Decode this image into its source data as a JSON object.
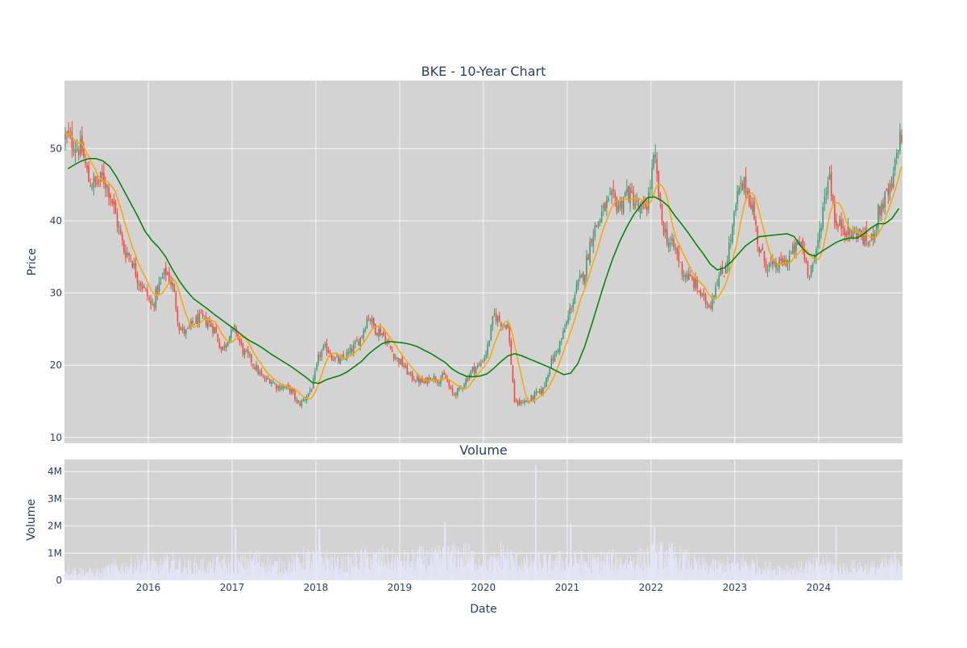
{
  "chart_data": [
    {
      "type": "candlestick",
      "title": "BKE - 10-Year Chart",
      "xlabel": "",
      "ylabel": "Price",
      "ylim": [
        9.2,
        59.4
      ],
      "yticks": [
        10,
        20,
        30,
        40,
        50
      ],
      "xlim": [
        "2015-01-01",
        "2024-12-31"
      ],
      "xticks": [
        "2016",
        "2017",
        "2018",
        "2019",
        "2020",
        "2021",
        "2022",
        "2023",
        "2024"
      ],
      "grid": true,
      "plot_background": "#d3d3d3",
      "up_color": "#3d9970",
      "down_color": "#ff4136",
      "series": [
        {
          "role": "price",
          "x": [
            "2015-01",
            "2015-02",
            "2015-03",
            "2015-04",
            "2015-05",
            "2015-06",
            "2015-07",
            "2015-08",
            "2015-09",
            "2015-10",
            "2015-11",
            "2015-12",
            "2016-01",
            "2016-02",
            "2016-03",
            "2016-04",
            "2016-05",
            "2016-06",
            "2016-07",
            "2016-08",
            "2016-09",
            "2016-10",
            "2016-11",
            "2016-12",
            "2017-01",
            "2017-02",
            "2017-03",
            "2017-04",
            "2017-05",
            "2017-06",
            "2017-07",
            "2017-08",
            "2017-09",
            "2017-10",
            "2017-11",
            "2017-12",
            "2018-01",
            "2018-02",
            "2018-03",
            "2018-04",
            "2018-05",
            "2018-06",
            "2018-07",
            "2018-08",
            "2018-09",
            "2018-10",
            "2018-11",
            "2018-12",
            "2019-01",
            "2019-02",
            "2019-03",
            "2019-04",
            "2019-05",
            "2019-06",
            "2019-07",
            "2019-08",
            "2019-09",
            "2019-10",
            "2019-11",
            "2019-12",
            "2020-01",
            "2020-02",
            "2020-03",
            "2020-04",
            "2020-05",
            "2020-06",
            "2020-07",
            "2020-08",
            "2020-09",
            "2020-10",
            "2020-11",
            "2020-12",
            "2021-01",
            "2021-02",
            "2021-03",
            "2021-04",
            "2021-05",
            "2021-06",
            "2021-07",
            "2021-08",
            "2021-09",
            "2021-10",
            "2021-11",
            "2021-12",
            "2022-01",
            "2022-02",
            "2022-03",
            "2022-04",
            "2022-05",
            "2022-06",
            "2022-07",
            "2022-08",
            "2022-09",
            "2022-10",
            "2022-11",
            "2022-12",
            "2023-01",
            "2023-02",
            "2023-03",
            "2023-04",
            "2023-05",
            "2023-06",
            "2023-07",
            "2023-08",
            "2023-09",
            "2023-10",
            "2023-11",
            "2023-12",
            "2024-01",
            "2024-02",
            "2024-03",
            "2024-04",
            "2024-05",
            "2024-06",
            "2024-07",
            "2024-08",
            "2024-09",
            "2024-10",
            "2024-11",
            "2024-12"
          ],
          "close": [
            51.5,
            50.5,
            49.8,
            45.5,
            45.0,
            46.0,
            44.0,
            40.0,
            36.0,
            35.0,
            32.0,
            30.5,
            28.0,
            31.0,
            33.0,
            31.0,
            25.0,
            24.5,
            26.0,
            26.5,
            26.0,
            25.0,
            22.0,
            24.0,
            25.0,
            22.0,
            21.0,
            19.5,
            18.0,
            18.0,
            17.0,
            17.0,
            16.5,
            14.5,
            15.5,
            17.0,
            21.5,
            22.5,
            21.0,
            20.5,
            21.5,
            22.5,
            24.0,
            27.0,
            25.0,
            24.5,
            22.5,
            21.0,
            20.0,
            18.5,
            18.0,
            17.5,
            18.5,
            18.0,
            18.5,
            16.0,
            16.5,
            18.0,
            19.5,
            20.0,
            22.0,
            27.0,
            26.0,
            25.5,
            14.5,
            15.0,
            15.0,
            16.0,
            16.5,
            20.0,
            22.0,
            24.5,
            28.0,
            31.0,
            33.0,
            38.0,
            40.0,
            42.0,
            43.0,
            42.0,
            44.0,
            43.0,
            41.0,
            42.5,
            49.0,
            40.0,
            37.0,
            36.0,
            33.0,
            32.0,
            31.0,
            29.0,
            28.5,
            32.0,
            33.0,
            38.0,
            44.0,
            45.0,
            42.0,
            36.0,
            34.0,
            33.5,
            34.0,
            34.5,
            36.0,
            37.0,
            33.0,
            34.5,
            41.0,
            47.0,
            39.0,
            39.5,
            38.0,
            38.5,
            37.5,
            37.0,
            41.0,
            43.0,
            44.5,
            51.5
          ]
        },
        {
          "role": "short moving average",
          "color": "#ffa500"
        },
        {
          "role": "long moving average",
          "color": "#008000",
          "values": [
            47.2,
            47.8,
            48.3,
            48.6,
            48.6,
            48.3,
            47.5,
            46.0,
            44.2,
            42.4,
            40.6,
            38.6,
            37.3,
            36.3,
            35.0,
            33.2,
            31.6,
            30.3,
            29.2,
            28.5,
            27.8,
            27.0,
            26.3,
            25.6,
            24.9,
            24.1,
            23.4,
            22.9,
            22.3,
            21.6,
            21.0,
            20.4,
            19.8,
            19.1,
            18.4,
            17.6,
            17.5,
            18.0,
            18.3,
            18.6,
            19.1,
            19.8,
            20.5,
            21.5,
            22.3,
            23.0,
            23.3,
            23.2,
            23.1,
            22.9,
            22.6,
            22.1,
            21.6,
            21.0,
            20.4,
            19.5,
            18.9,
            18.5,
            18.4,
            18.5,
            18.8,
            19.6,
            20.5,
            21.3,
            21.6,
            21.3,
            20.9,
            20.5,
            20.1,
            19.7,
            19.2,
            18.7,
            18.9,
            20.2,
            22.6,
            25.6,
            28.8,
            31.9,
            34.7,
            37.1,
            39.1,
            40.8,
            42.1,
            43.2,
            43.3,
            42.8,
            42.0,
            40.6,
            39.4,
            38.1,
            36.7,
            35.4,
            34.0,
            33.2,
            33.5,
            34.3,
            35.4,
            36.5,
            37.2,
            37.8,
            37.9,
            38.0,
            38.1,
            38.2,
            37.8,
            36.4,
            35.4,
            35.1,
            35.8,
            36.4,
            37.0,
            37.4,
            37.6,
            37.6,
            38.2,
            39.0,
            39.6,
            39.6,
            40.3,
            41.7
          ]
        }
      ]
    },
    {
      "type": "bar",
      "title": "Volume",
      "xlabel": "Date",
      "ylabel": "Volume",
      "ylim": [
        0,
        4450000
      ],
      "yticks": [
        0,
        1000000,
        2000000,
        3000000,
        4000000
      ],
      "ytick_labels": [
        "0",
        "1M",
        "2M",
        "3M",
        "4M"
      ],
      "grid": true,
      "plot_background": "#d3d3d3",
      "bar_color": "#e6e6fa",
      "volume": [
        380000,
        360000,
        330000,
        300000,
        310000,
        320000,
        420000,
        520000,
        480000,
        560000,
        600000,
        650000,
        560000,
        520000,
        600000,
        700000,
        560000,
        480000,
        520000,
        560000,
        500000,
        540000,
        650000,
        560000,
        540000,
        620000,
        720000,
        760000,
        640000,
        560000,
        520000,
        560000,
        560000,
        700000,
        820000,
        760000,
        900000,
        760000,
        620000,
        580000,
        560000,
        700000,
        760000,
        800000,
        760000,
        820000,
        720000,
        760000,
        720000,
        680000,
        820000,
        780000,
        760000,
        800000,
        860000,
        880000,
        900000,
        920000,
        780000,
        720000,
        640000,
        600000,
        980000,
        860000,
        700000,
        640000,
        580000,
        740000,
        680000,
        620000,
        720000,
        700000,
        680000,
        720000,
        700000,
        640000,
        700000,
        760000,
        720000,
        680000,
        700000,
        740000,
        780000,
        820000,
        880000,
        940000,
        920000,
        860000,
        780000,
        700000,
        560000,
        520000,
        500000,
        520000,
        560000,
        540000,
        580000,
        620000,
        560000,
        500000,
        460000,
        440000,
        420000,
        440000,
        420000,
        440000,
        520000,
        540000,
        620000,
        560000,
        440000,
        420000,
        460000,
        500000,
        480000,
        460000,
        480000,
        540000,
        620000,
        820000
      ],
      "spikes": [
        {
          "date": "2020-08",
          "value": 4250000
        },
        {
          "date": "2019-07",
          "value": 2150000
        },
        {
          "date": "2021-01",
          "value": 2080000
        },
        {
          "date": "2022-01",
          "value": 1950000
        },
        {
          "date": "2017-01",
          "value": 1900000
        },
        {
          "date": "2018-01",
          "value": 1900000
        },
        {
          "date": "2024-03",
          "value": 1950000
        }
      ]
    }
  ]
}
